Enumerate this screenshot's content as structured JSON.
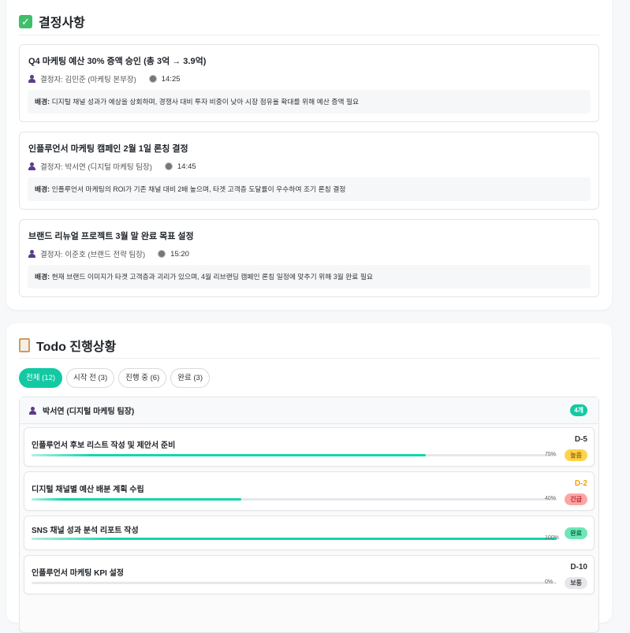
{
  "decisions": {
    "title": "결정사항",
    "icon": "check-box-icon",
    "items": [
      {
        "title": "Q4 마케팅 예산 30% 증액 승인 (총 3억 → 3.9억)",
        "decider": "결정자: 김민준 (마케팅 본부장)",
        "time": "14:25",
        "bg_label": "배경:",
        "background": "디지털 채널 성과가 예상을 상회하며, 경쟁사 대비 투자 비중이 낮아 시장 점유율 확대를 위해 예산 증액 필요"
      },
      {
        "title": "인플루언서 마케팅 캠페인 2월 1일 론칭 결정",
        "decider": "결정자: 박서연 (디지털 마케팅 팀장)",
        "time": "14:45",
        "bg_label": "배경:",
        "background": "인플루언서 마케팅의 ROI가 기존 채널 대비 2배 높으며, 타겟 고객층 도달률이 우수하여 조기 론칭 결정"
      },
      {
        "title": "브랜드 리뉴얼 프로젝트 3월 말 완료 목표 설정",
        "decider": "결정자: 이준호 (브랜드 전략 팀장)",
        "time": "15:20",
        "bg_label": "배경:",
        "background": "현재 브랜드 이미지가 타겟 고객층과 괴리가 있으며, 4월 리브랜딩 캠페인 론칭 일정에 맞추기 위해 3월 완료 필요"
      }
    ]
  },
  "todo": {
    "title": "Todo 진행상황",
    "icon": "clipboard-icon",
    "filters": [
      {
        "label": "전체 (12)",
        "active": true
      },
      {
        "label": "시작 전 (3)",
        "active": false
      },
      {
        "label": "진행 중 (6)",
        "active": false
      },
      {
        "label": "완료 (3)",
        "active": false
      }
    ],
    "group": {
      "owner": "박서연 (디지털 마케팅 팀장)",
      "count": "4개",
      "items": [
        {
          "title": "인플루언서 후보 리스트 작성 및 제안서 준비",
          "due": "D-5",
          "progress": 75,
          "progress_label": "75%",
          "priority": "높음",
          "priority_color": "#fcd34d",
          "due_color": "#333333"
        },
        {
          "title": "디지털 채널별 예산 배분 계획 수립",
          "due": "D-2",
          "progress": 40,
          "progress_label": "40%",
          "priority": "긴급",
          "priority_color": "#fca5a5",
          "due_color": "#f59e0b"
        },
        {
          "title": "SNS 채널 성과 분석 리포트 작성",
          "due": "",
          "progress": 100,
          "progress_label": "100%",
          "priority": "완료",
          "priority_color": "#6ee7b7",
          "due_color": "#333333"
        },
        {
          "title": "인플루언서 마케팅 KPI 설정",
          "due": "D-10",
          "progress": 0,
          "progress_label": "0%",
          "priority": "보통",
          "priority_color": "#e5e7eb",
          "due_color": "#333333"
        }
      ]
    }
  },
  "colors": {
    "accent": "#12c9a3"
  }
}
